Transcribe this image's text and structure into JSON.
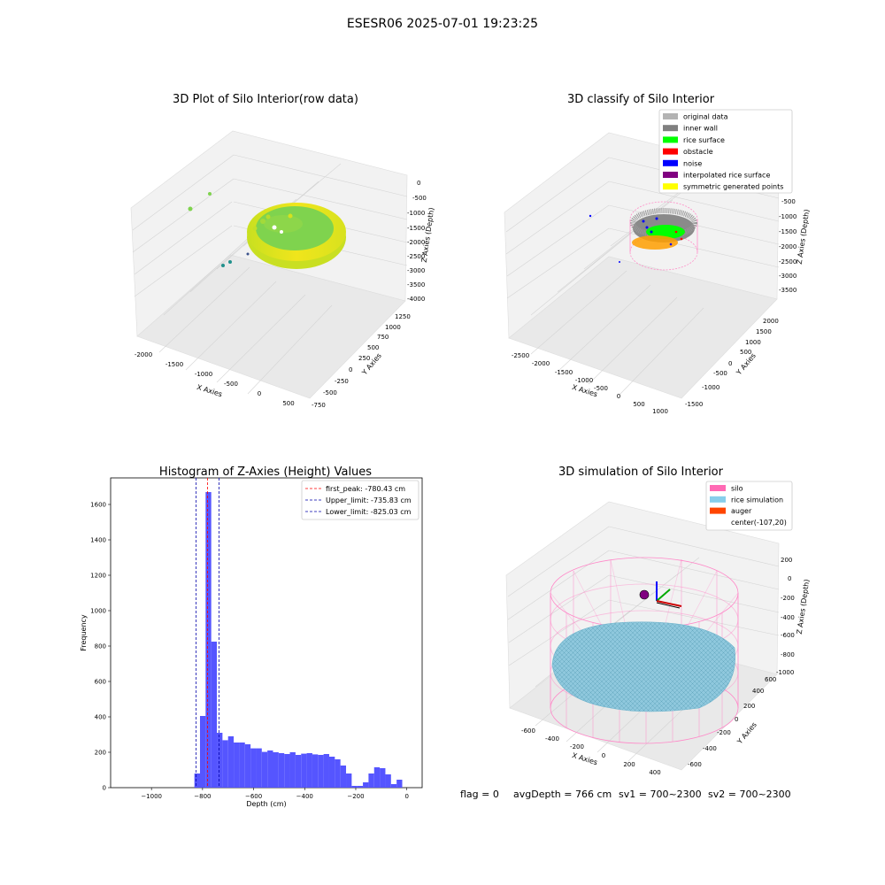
{
  "figure": {
    "suptitle": "ESESR06 2025-07-01 19:23:25"
  },
  "chart_data": [
    {
      "type": "scatter3d",
      "title": "3D Plot of Silo Interior(row data)",
      "xlabel": "X Axies",
      "ylabel": "Y Axies",
      "zlabel": "Z Axies (Depth)",
      "x_ticks": [
        "-2000",
        "-1500",
        "-1000",
        "-500",
        "0",
        "500"
      ],
      "y_ticks": [
        "-750",
        "-500",
        "-250",
        "0",
        "250",
        "500",
        "750",
        "1000",
        "1250"
      ],
      "z_ticks": [
        "0",
        "-500",
        "-1000",
        "-1500",
        "-2000",
        "-2500",
        "-3000",
        "-3500",
        "-4000"
      ],
      "grid": true,
      "colormap": [
        "#3b528b",
        "#21918c",
        "#5ec962",
        "#fde725"
      ]
    },
    {
      "type": "scatter3d",
      "title": "3D classify of Silo Interior",
      "xlabel": "X Axies",
      "ylabel": "Y Axies",
      "zlabel": "Z Axies (Depth)",
      "x_ticks": [
        "-2500",
        "-2000",
        "-1500",
        "-1000",
        "-500",
        "0",
        "500",
        "1000"
      ],
      "y_ticks": [
        "-1500",
        "-1000",
        "-500",
        "0",
        "500",
        "1000",
        "1500",
        "2000"
      ],
      "z_ticks": [
        "-500",
        "-1000",
        "-1500",
        "-2000",
        "-2500",
        "-3000",
        "-3500"
      ],
      "grid": true,
      "legend_position": "top-right",
      "legend": [
        {
          "label": "original data",
          "color": "#b3b3b3"
        },
        {
          "label": "inner wall",
          "color": "#808080"
        },
        {
          "label": "rice surface",
          "color": "#00ff00"
        },
        {
          "label": "obstacle",
          "color": "#ff0000"
        },
        {
          "label": "noise",
          "color": "#0000ff"
        },
        {
          "label": "interpolated rice surface",
          "color": "#800080"
        },
        {
          "label": "symmetric generated points",
          "color": "#ffff00"
        }
      ]
    },
    {
      "type": "bar",
      "title": "Histogram of Z-Axies (Height) Values",
      "xlabel": "Depth (cm)",
      "ylabel": "Frequency",
      "xlim": [
        -1160,
        60
      ],
      "ylim": [
        0,
        1750
      ],
      "x_ticks": [
        -1000,
        -800,
        -600,
        -400,
        -200,
        0
      ],
      "y_ticks": [
        0,
        200,
        400,
        600,
        800,
        1000,
        1200,
        1400,
        1600
      ],
      "bin_width": 22,
      "bar_color": "#5555ff",
      "bins": [
        {
          "x0": -832,
          "value": 80
        },
        {
          "x0": -810,
          "value": 405
        },
        {
          "x0": -788,
          "value": 1670
        },
        {
          "x0": -766,
          "value": 825
        },
        {
          "x0": -744,
          "value": 310
        },
        {
          "x0": -722,
          "value": 268
        },
        {
          "x0": -700,
          "value": 290
        },
        {
          "x0": -678,
          "value": 255
        },
        {
          "x0": -656,
          "value": 255
        },
        {
          "x0": -634,
          "value": 245
        },
        {
          "x0": -612,
          "value": 222
        },
        {
          "x0": -590,
          "value": 222
        },
        {
          "x0": -568,
          "value": 202
        },
        {
          "x0": -546,
          "value": 210
        },
        {
          "x0": -524,
          "value": 200
        },
        {
          "x0": -502,
          "value": 195
        },
        {
          "x0": -480,
          "value": 190
        },
        {
          "x0": -458,
          "value": 200
        },
        {
          "x0": -436,
          "value": 185
        },
        {
          "x0": -414,
          "value": 192
        },
        {
          "x0": -392,
          "value": 195
        },
        {
          "x0": -370,
          "value": 188
        },
        {
          "x0": -348,
          "value": 185
        },
        {
          "x0": -326,
          "value": 190
        },
        {
          "x0": -304,
          "value": 175
        },
        {
          "x0": -282,
          "value": 160
        },
        {
          "x0": -260,
          "value": 125
        },
        {
          "x0": -238,
          "value": 80
        },
        {
          "x0": -216,
          "value": 10
        },
        {
          "x0": -194,
          "value": 10
        },
        {
          "x0": -172,
          "value": 30
        },
        {
          "x0": -150,
          "value": 80
        },
        {
          "x0": -128,
          "value": 115
        },
        {
          "x0": -106,
          "value": 110
        },
        {
          "x0": -84,
          "value": 75
        },
        {
          "x0": -62,
          "value": 20
        },
        {
          "x0": -40,
          "value": 45
        }
      ],
      "vlines": [
        {
          "label": "first_peak: -780.43 cm",
          "x": -780.43,
          "color": "#ff0000"
        },
        {
          "label": "Upper_limit: -735.83 cm",
          "x": -735.83,
          "color": "#0000aa"
        },
        {
          "label": "Lower_limit: -825.03 cm",
          "x": -825.03,
          "color": "#0000aa"
        }
      ],
      "legend_position": "top-right"
    },
    {
      "type": "surface3d",
      "title": "3D simulation of Silo Interior",
      "xlabel": "X Axies",
      "ylabel": "Y Axies",
      "zlabel": "Z Axies (Depth)",
      "x_ticks": [
        "-600",
        "-400",
        "-200",
        "0",
        "200",
        "400"
      ],
      "y_ticks": [
        "-600",
        "-400",
        "-200",
        "0",
        "200",
        "400",
        "600"
      ],
      "z_ticks": [
        "200",
        "0",
        "-200",
        "-400",
        "-600",
        "-800",
        "-1000"
      ],
      "grid": true,
      "legend_position": "top-right",
      "legend": [
        {
          "label": "silo",
          "color": "#ff69b4"
        },
        {
          "label": "rice simulation",
          "color": "#87ceeb"
        },
        {
          "label": "auger",
          "color": "#ff4500"
        },
        {
          "label": "center(-107,20)",
          "color": "#ffffff"
        }
      ]
    }
  ],
  "status": {
    "flag": "flag = 0",
    "avg_depth": "avgDepth = 766 cm",
    "sv1": "sv1 = 700~2300",
    "sv2": "sv2 = 700~2300"
  }
}
